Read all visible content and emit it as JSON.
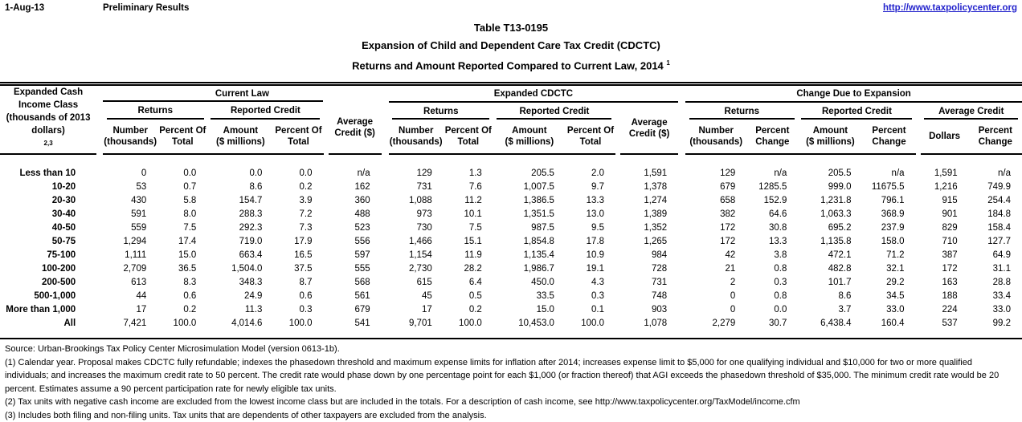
{
  "page": {
    "date": "1-Aug-13",
    "status": "Preliminary Results",
    "link": "http://www.taxpolicycenter.org"
  },
  "title": {
    "line1": "Table T13-0195",
    "line2": "Expansion of Child and Dependent Care Tax Credit (CDCTC)",
    "line3": "Returns and Amount Reported Compared to Current Law, 2014 ",
    "line3_sup": "1"
  },
  "table": {
    "header": {
      "income": [
        "Expanded Cash",
        "Income Class",
        "(thousands of 2013",
        "dollars)"
      ],
      "income_sup": "2,3",
      "groups": [
        "Current Law",
        "Expanded CDCTC",
        "Change Due to Expansion"
      ],
      "subgroups": [
        "Returns",
        "Reported Credit",
        "Average Credit"
      ],
      "cols": {
        "number": [
          "Number",
          "(thousands)"
        ],
        "percent_of_total": [
          "Percent Of",
          "Total"
        ],
        "amount": [
          "Amount",
          "($ millions)"
        ],
        "percent_change": [
          "Percent",
          "Change"
        ],
        "average_credit": [
          "Average",
          "Credit ($)"
        ],
        "dollars": "Dollars"
      }
    },
    "rows": [
      {
        "income": "Less than 10",
        "current_law": [
          "0",
          "0.0",
          "0.0",
          "0.0",
          "n/a"
        ],
        "expanded": [
          "129",
          "1.3",
          "205.5",
          "2.0",
          "1,591"
        ],
        "change": [
          "129",
          "n/a",
          "205.5",
          "n/a",
          "1,591",
          "n/a"
        ]
      },
      {
        "income": "10-20",
        "current_law": [
          "53",
          "0.7",
          "8.6",
          "0.2",
          "162"
        ],
        "expanded": [
          "731",
          "7.6",
          "1,007.5",
          "9.7",
          "1,378"
        ],
        "change": [
          "679",
          "1285.5",
          "999.0",
          "11675.5",
          "1,216",
          "749.9"
        ]
      },
      {
        "income": "20-30",
        "current_law": [
          "430",
          "5.8",
          "154.7",
          "3.9",
          "360"
        ],
        "expanded": [
          "1,088",
          "11.2",
          "1,386.5",
          "13.3",
          "1,274"
        ],
        "change": [
          "658",
          "152.9",
          "1,231.8",
          "796.1",
          "915",
          "254.4"
        ]
      },
      {
        "income": "30-40",
        "current_law": [
          "591",
          "8.0",
          "288.3",
          "7.2",
          "488"
        ],
        "expanded": [
          "973",
          "10.1",
          "1,351.5",
          "13.0",
          "1,389"
        ],
        "change": [
          "382",
          "64.6",
          "1,063.3",
          "368.9",
          "901",
          "184.8"
        ]
      },
      {
        "income": "40-50",
        "current_law": [
          "559",
          "7.5",
          "292.3",
          "7.3",
          "523"
        ],
        "expanded": [
          "730",
          "7.5",
          "987.5",
          "9.5",
          "1,352"
        ],
        "change": [
          "172",
          "30.8",
          "695.2",
          "237.9",
          "829",
          "158.4"
        ]
      },
      {
        "income": "50-75",
        "current_law": [
          "1,294",
          "17.4",
          "719.0",
          "17.9",
          "556"
        ],
        "expanded": [
          "1,466",
          "15.1",
          "1,854.8",
          "17.8",
          "1,265"
        ],
        "change": [
          "172",
          "13.3",
          "1,135.8",
          "158.0",
          "710",
          "127.7"
        ]
      },
      {
        "income": "75-100",
        "current_law": [
          "1,111",
          "15.0",
          "663.4",
          "16.5",
          "597"
        ],
        "expanded": [
          "1,154",
          "11.9",
          "1,135.4",
          "10.9",
          "984"
        ],
        "change": [
          "42",
          "3.8",
          "472.1",
          "71.2",
          "387",
          "64.9"
        ]
      },
      {
        "income": "100-200",
        "current_law": [
          "2,709",
          "36.5",
          "1,504.0",
          "37.5",
          "555"
        ],
        "expanded": [
          "2,730",
          "28.2",
          "1,986.7",
          "19.1",
          "728"
        ],
        "change": [
          "21",
          "0.8",
          "482.8",
          "32.1",
          "172",
          "31.1"
        ]
      },
      {
        "income": "200-500",
        "current_law": [
          "613",
          "8.3",
          "348.3",
          "8.7",
          "568"
        ],
        "expanded": [
          "615",
          "6.4",
          "450.0",
          "4.3",
          "731"
        ],
        "change": [
          "2",
          "0.3",
          "101.7",
          "29.2",
          "163",
          "28.8"
        ]
      },
      {
        "income": "500-1,000",
        "current_law": [
          "44",
          "0.6",
          "24.9",
          "0.6",
          "561"
        ],
        "expanded": [
          "45",
          "0.5",
          "33.5",
          "0.3",
          "748"
        ],
        "change": [
          "0",
          "0.8",
          "8.6",
          "34.5",
          "188",
          "33.4"
        ]
      },
      {
        "income": "More than 1,000",
        "current_law": [
          "17",
          "0.2",
          "11.3",
          "0.3",
          "679"
        ],
        "expanded": [
          "17",
          "0.2",
          "15.0",
          "0.1",
          "903"
        ],
        "change": [
          "0",
          "0.0",
          "3.7",
          "33.0",
          "224",
          "33.0"
        ]
      },
      {
        "income": "All",
        "current_law": [
          "7,421",
          "100.0",
          "4,014.6",
          "100.0",
          "541"
        ],
        "expanded": [
          "9,701",
          "100.0",
          "10,453.0",
          "100.0",
          "1,078"
        ],
        "change": [
          "2,279",
          "30.7",
          "6,438.4",
          "160.4",
          "537",
          "99.2"
        ]
      }
    ]
  },
  "footnotes": {
    "source": "Source: Urban-Brookings Tax Policy Center Microsimulation Model (version 0613-1b).",
    "fn1": "(1) Calendar year. Proposal makes CDCTC fully refundable; indexes the phasedown threshold and maximum expense limits for inflation after 2014; increases expense limit to $5,000 for one qualifying individual and $10,000 for two or more qualified individuals; and increases the maximum credit rate to 50 percent. The credit rate would phase down by one percentage point for each $1,000 (or fraction thereof) that AGI exceeds the phasedown threshold of $35,000.  The minimum credit rate would be 20 percent.  Estimates assume a 90 percent participation rate for newly eligible tax units.",
    "fn2": "(2) Tax units with negative cash income are excluded from the lowest income class but are included in the totals. For a description of cash income, see http://www.taxpolicycenter.org/TaxModel/income.cfm",
    "fn3": "(3) Includes both filing and non-filing units.  Tax units that are dependents of other taxpayers are excluded from the analysis."
  }
}
